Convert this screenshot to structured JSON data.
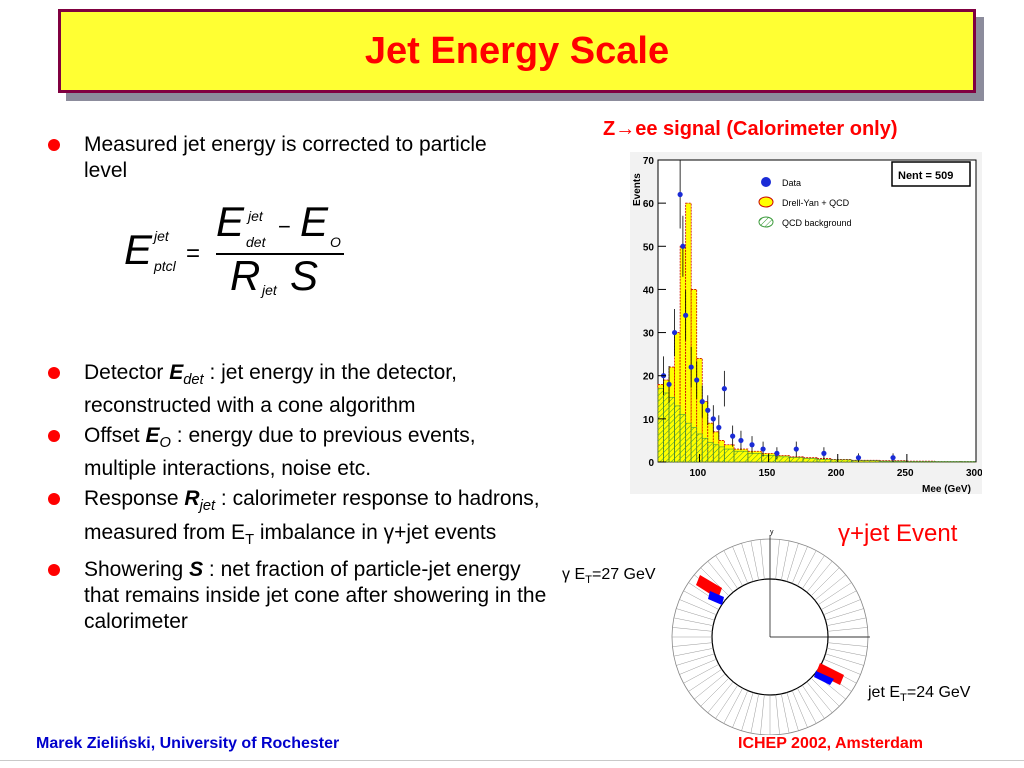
{
  "slide": {
    "title": "Jet Energy Scale",
    "bullets": [
      {
        "text_before": "Measured jet energy is corrected to particle level"
      },
      {
        "text_before": "Detector ",
        "symbol": "E",
        "sub": "det",
        "text_after": " : jet energy in the detector, reconstructed with a cone algorithm"
      },
      {
        "text_before": "Offset ",
        "symbol": "E",
        "sub": "O",
        "text_after": " : energy due to previous events, multiple interactions, noise etc."
      },
      {
        "text_before": "Response ",
        "symbol": "R",
        "sub": "jet",
        "text_after": " : calorimeter response to hadrons, measured from E",
        "sub2": "T",
        "text_after2": " imbalance in γ+jet events"
      },
      {
        "text_before": "Showering ",
        "symbol": "S",
        "text_after": " : net fraction of particle-jet energy that remains inside jet cone after showering in the calorimeter"
      }
    ],
    "formula": {
      "lhs": "E",
      "lhs_sup": "jet",
      "lhs_sub": "ptcl",
      "num_e": "E",
      "num_sup": "jet",
      "num_sub": "det",
      "minus": "−",
      "num_e2": "E",
      "num_sub2": "O",
      "den_r": "R",
      "den_sub": "jet",
      "den_s": "S",
      "equals": "="
    },
    "plot_caption": "Z→ee signal (Calorimeter only)",
    "event_title": "γ+jet Event",
    "gamma_label": {
      "prefix": "γ E",
      "sub": "T",
      "suffix": "=27 GeV"
    },
    "jet_label": {
      "prefix": "jet E",
      "sub": "T",
      "suffix": "=24 GeV"
    },
    "footer_left": "Marek Zieliński, University of Rochester",
    "footer_right": "ICHEP 2002, Amsterdam"
  },
  "chart_data": {
    "type": "histogram",
    "xlabel": "Mee (GeV)",
    "ylabel": "Events",
    "xlim": [
      70,
      300
    ],
    "ylim": [
      0,
      70
    ],
    "xticks": [
      100,
      150,
      200,
      250,
      300
    ],
    "yticks": [
      0,
      10,
      20,
      30,
      40,
      50,
      60,
      70
    ],
    "stats_box": "Nent = 509",
    "legend": [
      "Data",
      "Drell-Yan + QCD",
      "QCD background"
    ],
    "legend_position": "top-center",
    "bin_centers": [
      72,
      76,
      80,
      84,
      88,
      92,
      96,
      100,
      104,
      108,
      112,
      116,
      120,
      130,
      140,
      150,
      160,
      170,
      180,
      190,
      200,
      220,
      240,
      260,
      280,
      298
    ],
    "dy_qcd": [
      18,
      19,
      22,
      30,
      50,
      60,
      40,
      24,
      14,
      9,
      7,
      5,
      4,
      3,
      2.5,
      2,
      1.5,
      1.2,
      1,
      0.8,
      0.6,
      0.4,
      0.3,
      0.2,
      0.1,
      0.1
    ],
    "qcd_bkg": [
      17,
      16,
      15,
      13,
      11,
      9,
      8,
      6.5,
      5.5,
      4.5,
      4,
      3.5,
      3,
      2.5,
      2,
      1.5,
      1.2,
      1,
      0.8,
      0.6,
      0.5,
      0.3,
      0.2,
      0.1,
      0.1,
      0.1
    ],
    "data_points": [
      {
        "x": 74,
        "y": 20
      },
      {
        "x": 78,
        "y": 18
      },
      {
        "x": 82,
        "y": 30
      },
      {
        "x": 86,
        "y": 62
      },
      {
        "x": 88,
        "y": 50
      },
      {
        "x": 90,
        "y": 34
      },
      {
        "x": 94,
        "y": 22
      },
      {
        "x": 98,
        "y": 19
      },
      {
        "x": 102,
        "y": 14
      },
      {
        "x": 106,
        "y": 12
      },
      {
        "x": 110,
        "y": 10
      },
      {
        "x": 114,
        "y": 8
      },
      {
        "x": 118,
        "y": 17
      },
      {
        "x": 124,
        "y": 6
      },
      {
        "x": 130,
        "y": 5
      },
      {
        "x": 138,
        "y": 4
      },
      {
        "x": 146,
        "y": 3
      },
      {
        "x": 156,
        "y": 2
      },
      {
        "x": 170,
        "y": 3
      },
      {
        "x": 190,
        "y": 2
      },
      {
        "x": 215,
        "y": 1
      },
      {
        "x": 240,
        "y": 1
      }
    ]
  }
}
